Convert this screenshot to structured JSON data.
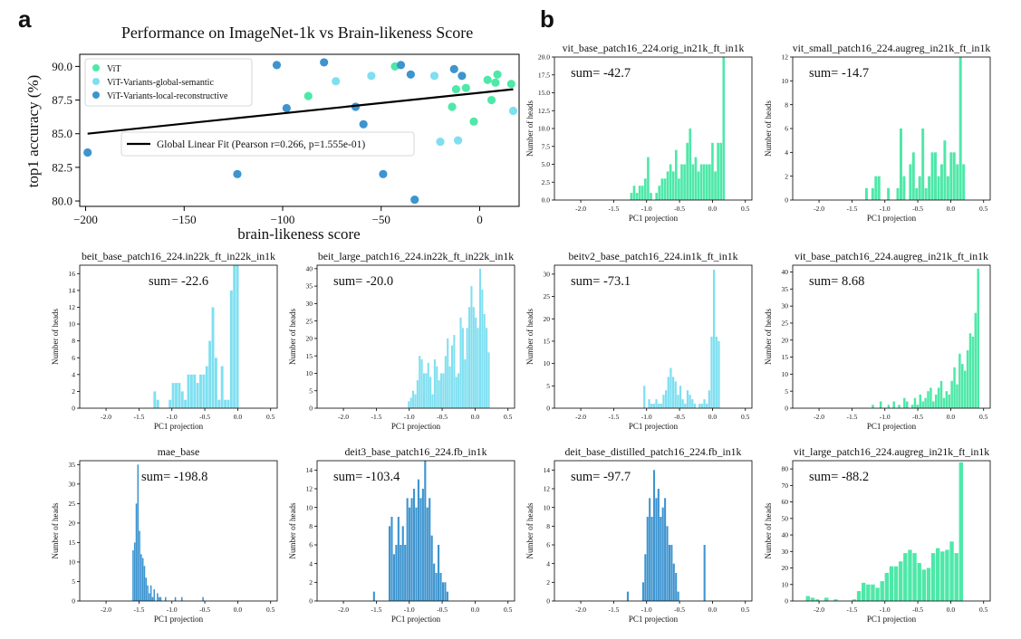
{
  "panel_labels": {
    "a": "a",
    "b": "b"
  },
  "colors": {
    "vit": "#4ee8a8",
    "global": "#7fdff0",
    "local": "#3d94cf",
    "fit": "#000000"
  },
  "chart_data": [
    {
      "id": "scatter",
      "type": "scatter",
      "title": "Performance on ImageNet-1k vs Brain-likeness Score",
      "xlabel": "brain-likeness score",
      "ylabel": "top1 accuracy (%)",
      "xlim": [
        -203,
        20
      ],
      "ylim": [
        79.6,
        90.9
      ],
      "xticks": [
        -200,
        -150,
        -100,
        -50,
        0
      ],
      "yticks": [
        80.0,
        82.5,
        85.0,
        87.5,
        90.0
      ],
      "ytick_labels": [
        "80.0",
        "82.5",
        "85.0",
        "87.5",
        "90.0"
      ],
      "legend": [
        "ViT",
        "ViT-Variants-global-semantic",
        "ViT-Variants-local-reconstructive"
      ],
      "fit_label": "Global Linear Fit (Pearson r=0.266, p=1.555e-01)",
      "fit_line": {
        "x": [
          -199,
          17
        ],
        "y": [
          85.0,
          88.3
        ]
      },
      "series": [
        {
          "name": "ViT",
          "color_key": "vit",
          "points": [
            [
              -87,
              87.8
            ],
            [
              -43,
              90.0
            ],
            [
              -14,
              87.0
            ],
            [
              -12,
              88.3
            ],
            [
              -7,
              88.4
            ],
            [
              -3,
              85.9
            ],
            [
              4,
              89.0
            ],
            [
              6,
              87.5
            ],
            [
              8,
              88.8
            ],
            [
              9,
              89.4
            ],
            [
              16,
              88.7
            ]
          ]
        },
        {
          "name": "ViT-Variants-global-semantic",
          "color_key": "global",
          "points": [
            [
              -73,
              88.9
            ],
            [
              -55,
              89.3
            ],
            [
              -20,
              84.4
            ],
            [
              -23,
              89.3
            ],
            [
              -11,
              84.5
            ],
            [
              17,
              86.7
            ]
          ]
        },
        {
          "name": "ViT-Variants-local-reconstructive",
          "color_key": "local",
          "points": [
            [
              -199,
              83.6
            ],
            [
              -123,
              82.0
            ],
            [
              -103,
              90.1
            ],
            [
              -98,
              86.9
            ],
            [
              -79,
              90.3
            ],
            [
              -63,
              87.0
            ],
            [
              -59,
              85.7
            ],
            [
              -49,
              82.0
            ],
            [
              -40,
              90.1
            ],
            [
              -35,
              89.4
            ],
            [
              -33,
              80.1
            ],
            [
              -13,
              89.8
            ],
            [
              -9,
              89.3
            ]
          ]
        }
      ]
    },
    {
      "id": "h1",
      "type": "bar",
      "title": "vit_base_patch16_224.orig_in21k_ft_in1k",
      "sum": "sum= -42.7",
      "xlabel": "PC1 projection",
      "ylabel": "Number of heads",
      "color_key": "vit",
      "ylim": [
        0,
        20
      ],
      "yticks": [
        0,
        2.5,
        5,
        7.5,
        10,
        12.5,
        15,
        17.5,
        20
      ],
      "ytick_labels": [
        "0.0",
        "2.5",
        "5.0",
        "7.5",
        "10.0",
        "12.5",
        "15.0",
        "17.5",
        "20.0"
      ],
      "x_start": -1.25,
      "bin_width": 0.0425,
      "values": [
        1,
        2,
        1,
        2,
        2,
        3,
        6,
        1,
        0,
        1,
        2,
        3,
        3,
        4,
        5,
        4,
        7,
        3,
        5,
        5,
        8,
        10,
        5,
        6,
        4,
        5,
        5,
        5,
        5,
        8,
        4,
        8,
        8,
        20
      ]
    },
    {
      "id": "h2",
      "type": "bar",
      "title": "vit_small_patch16_224.augreg_in21k_ft_in1k",
      "sum": "sum= -14.7",
      "xlabel": "PC1 projection",
      "ylabel": "Number of heads",
      "color_key": "vit",
      "ylim": [
        0,
        12
      ],
      "yticks": [
        0,
        2,
        4,
        6,
        8,
        10,
        12
      ],
      "ytick_labels": [
        "0",
        "2",
        "4",
        "6",
        "8",
        "10",
        "12"
      ],
      "x_start": -1.3,
      "bin_width": 0.0476,
      "values": [
        1,
        0,
        1,
        2,
        2,
        0,
        0,
        1,
        0,
        0,
        1,
        6,
        2,
        0,
        3,
        4,
        1,
        2,
        6,
        1,
        2,
        4,
        4,
        2,
        3,
        5,
        2,
        4,
        4,
        3,
        12,
        3
      ]
    },
    {
      "id": "h3",
      "type": "bar",
      "title": "beit_base_patch16_224.in22k_ft_in22k_in1k",
      "sum": "sum= -22.6",
      "xlabel": "PC1 projection",
      "ylabel": "Number of heads",
      "color_key": "global",
      "ylim": [
        0,
        17
      ],
      "yticks": [
        0,
        2,
        4,
        6,
        8,
        10,
        12,
        14,
        16
      ],
      "ytick_labels": [
        "0",
        "2",
        "4",
        "6",
        "8",
        "10",
        "12",
        "14",
        "16"
      ],
      "x_start": -1.28,
      "bin_width": 0.0465,
      "values": [
        2,
        1,
        0,
        0,
        0,
        1,
        3,
        3,
        3,
        2,
        1,
        4,
        4,
        4,
        3,
        4,
        4,
        5,
        8,
        12,
        6,
        1,
        5,
        1,
        1,
        14,
        17,
        17
      ]
    },
    {
      "id": "h4",
      "type": "bar",
      "title": "beit_large_patch16_224.in22k_ft_in22k_in1k",
      "sum": "sum= -20.0",
      "xlabel": "PC1 projection",
      "ylabel": "Number of heads",
      "color_key": "global",
      "ylim": [
        0,
        41
      ],
      "yticks": [
        0,
        5,
        10,
        15,
        20,
        25,
        30,
        35,
        40
      ],
      "ytick_labels": [
        "0",
        "5",
        "10",
        "15",
        "20",
        "25",
        "30",
        "35",
        "40"
      ],
      "x_start": -1.02,
      "bin_width": 0.0328,
      "values": [
        2,
        3,
        5,
        4,
        8,
        15,
        14,
        10,
        10,
        13,
        9,
        4,
        14,
        12,
        8,
        10,
        10,
        15,
        20,
        12,
        18,
        21,
        9,
        10,
        26,
        23,
        14,
        23,
        29,
        35,
        29,
        26,
        23,
        40,
        34,
        27,
        23,
        16
      ]
    },
    {
      "id": "h5",
      "type": "bar",
      "title": "beitv2_base_patch16_224.in1k_ft_in1k",
      "sum": "sum= -73.1",
      "xlabel": "PC1 projection",
      "ylabel": "Number of heads",
      "color_key": "global",
      "ylim": [
        0,
        32
      ],
      "yticks": [
        0,
        5,
        10,
        15,
        20,
        25,
        30
      ],
      "ytick_labels": [
        "0",
        "5",
        "10",
        "15",
        "20",
        "25",
        "30"
      ],
      "x_start": -1.05,
      "bin_width": 0.0365,
      "values": [
        5,
        0,
        2,
        1,
        1,
        2,
        1,
        1,
        3,
        4,
        7,
        9,
        7,
        6,
        3,
        5,
        2,
        1,
        4,
        3,
        2,
        1,
        0,
        1,
        1,
        2,
        1,
        4,
        16,
        31,
        16,
        15
      ]
    },
    {
      "id": "h6",
      "type": "bar",
      "title": "vit_base_patch16_224.augreg_in21k_ft_in1k",
      "sum": "sum= 8.68",
      "xlabel": "PC1 projection",
      "ylabel": "Number of heads",
      "color_key": "vit",
      "ylim": [
        0,
        42
      ],
      "yticks": [
        0,
        5,
        10,
        15,
        20,
        25,
        30,
        35,
        40
      ],
      "ytick_labels": [
        "0",
        "5",
        "10",
        "15",
        "20",
        "25",
        "30",
        "35",
        "40"
      ],
      "x_start": -1.2,
      "bin_width": 0.04,
      "values": [
        1,
        0,
        0,
        2,
        0,
        0,
        1,
        0,
        2,
        0,
        1,
        0,
        3,
        2,
        0,
        1,
        3,
        1,
        4,
        2,
        3,
        5,
        6,
        2,
        4,
        6,
        8,
        3,
        5,
        4,
        8,
        12,
        7,
        16,
        13,
        11,
        17,
        22,
        21,
        28,
        41
      ]
    },
    {
      "id": "h7",
      "type": "bar",
      "title": "mae_base",
      "sum": "sum= -198.8",
      "xlabel": "PC1 projection",
      "ylabel": "Number of heads",
      "color_key": "local",
      "ylim": [
        0,
        36
      ],
      "yticks": [
        0,
        5,
        10,
        15,
        20,
        25,
        30,
        35
      ],
      "ytick_labels": [
        "0",
        "5",
        "10",
        "15",
        "20",
        "25",
        "30",
        "35"
      ],
      "x_start": -1.6,
      "bin_width": 0.0247,
      "values": [
        13,
        15,
        25,
        35,
        18,
        12,
        11,
        9,
        6,
        4,
        2,
        4,
        1,
        3,
        0,
        2,
        1,
        1,
        0,
        0,
        1,
        0,
        0,
        0,
        0,
        0,
        1,
        0,
        0,
        0,
        1,
        0,
        0,
        0,
        0,
        0,
        0,
        0,
        0,
        0,
        0,
        0,
        0,
        1
      ]
    },
    {
      "id": "h8",
      "type": "bar",
      "title": "deit3_base_patch16_224.fb_in1k",
      "sum": "sum= -103.4",
      "xlabel": "PC1 projection",
      "ylabel": "Number of heads",
      "color_key": "local",
      "ylim": [
        0,
        15
      ],
      "yticks": [
        0,
        2,
        4,
        6,
        8,
        10,
        12,
        14
      ],
      "ytick_labels": [
        "0",
        "2",
        "4",
        "6",
        "8",
        "10",
        "12",
        "14"
      ],
      "x_start": -1.55,
      "bin_width": 0.0338,
      "values": [
        1,
        0,
        0,
        0,
        0,
        0,
        0,
        8,
        9,
        5,
        6,
        9,
        6,
        8,
        6,
        11,
        10,
        11,
        12,
        10,
        13,
        11,
        12,
        15,
        10,
        11,
        7,
        4,
        3,
        6,
        3,
        2,
        2,
        1
      ]
    },
    {
      "id": "h9",
      "type": "bar",
      "title": "deit_base_distilled_patch16_224.fb_in1k",
      "sum": "sum= -97.7",
      "xlabel": "PC1 projection",
      "ylabel": "Number of heads",
      "color_key": "local",
      "ylim": [
        0,
        15
      ],
      "yticks": [
        0,
        2,
        4,
        6,
        8,
        10,
        12,
        14
      ],
      "ytick_labels": [
        "0",
        "2",
        "4",
        "6",
        "8",
        "10",
        "12",
        "14"
      ],
      "x_start": -1.3,
      "bin_width": 0.0333,
      "values": [
        1,
        0,
        0,
        0,
        0,
        0,
        0,
        2,
        5,
        9,
        11,
        9,
        14,
        11,
        12,
        9,
        10,
        11,
        8,
        6,
        6,
        4,
        3,
        1,
        0,
        0,
        0,
        0,
        0,
        0,
        0,
        0,
        0,
        0,
        0,
        6
      ]
    },
    {
      "id": "h10",
      "type": "bar",
      "title": "vit_large_patch16_224.augreg_in21k_ft_in1k",
      "sum": "sum= -88.2",
      "xlabel": "PC1 projection",
      "ylabel": "Number of heads",
      "color_key": "vit",
      "ylim": [
        0,
        85
      ],
      "yticks": [
        0,
        10,
        20,
        30,
        40,
        50,
        60,
        70,
        80
      ],
      "ytick_labels": [
        "0",
        "10",
        "20",
        "30",
        "40",
        "50",
        "60",
        "70",
        "80"
      ],
      "x_start": -2.2,
      "bin_width": 0.0705,
      "values": [
        3,
        2,
        1,
        0,
        2,
        0,
        1,
        0,
        0,
        0,
        1,
        6,
        11,
        10,
        10,
        8,
        12,
        17,
        21,
        21,
        24,
        29,
        31,
        29,
        23,
        19,
        20,
        29,
        32,
        30,
        31,
        36,
        29,
        84
      ]
    }
  ],
  "hist_layout_note": "all histograms share x range -2.4..0.6 with ticks -2.0..0.5",
  "hist_xticks": [
    -2.0,
    -1.5,
    -1.0,
    -0.5,
    0.0,
    0.5
  ],
  "hist_xtick_labels": [
    "-2.0",
    "-1.5",
    "-1.0",
    "-0.5",
    "0.0",
    "0.5"
  ]
}
